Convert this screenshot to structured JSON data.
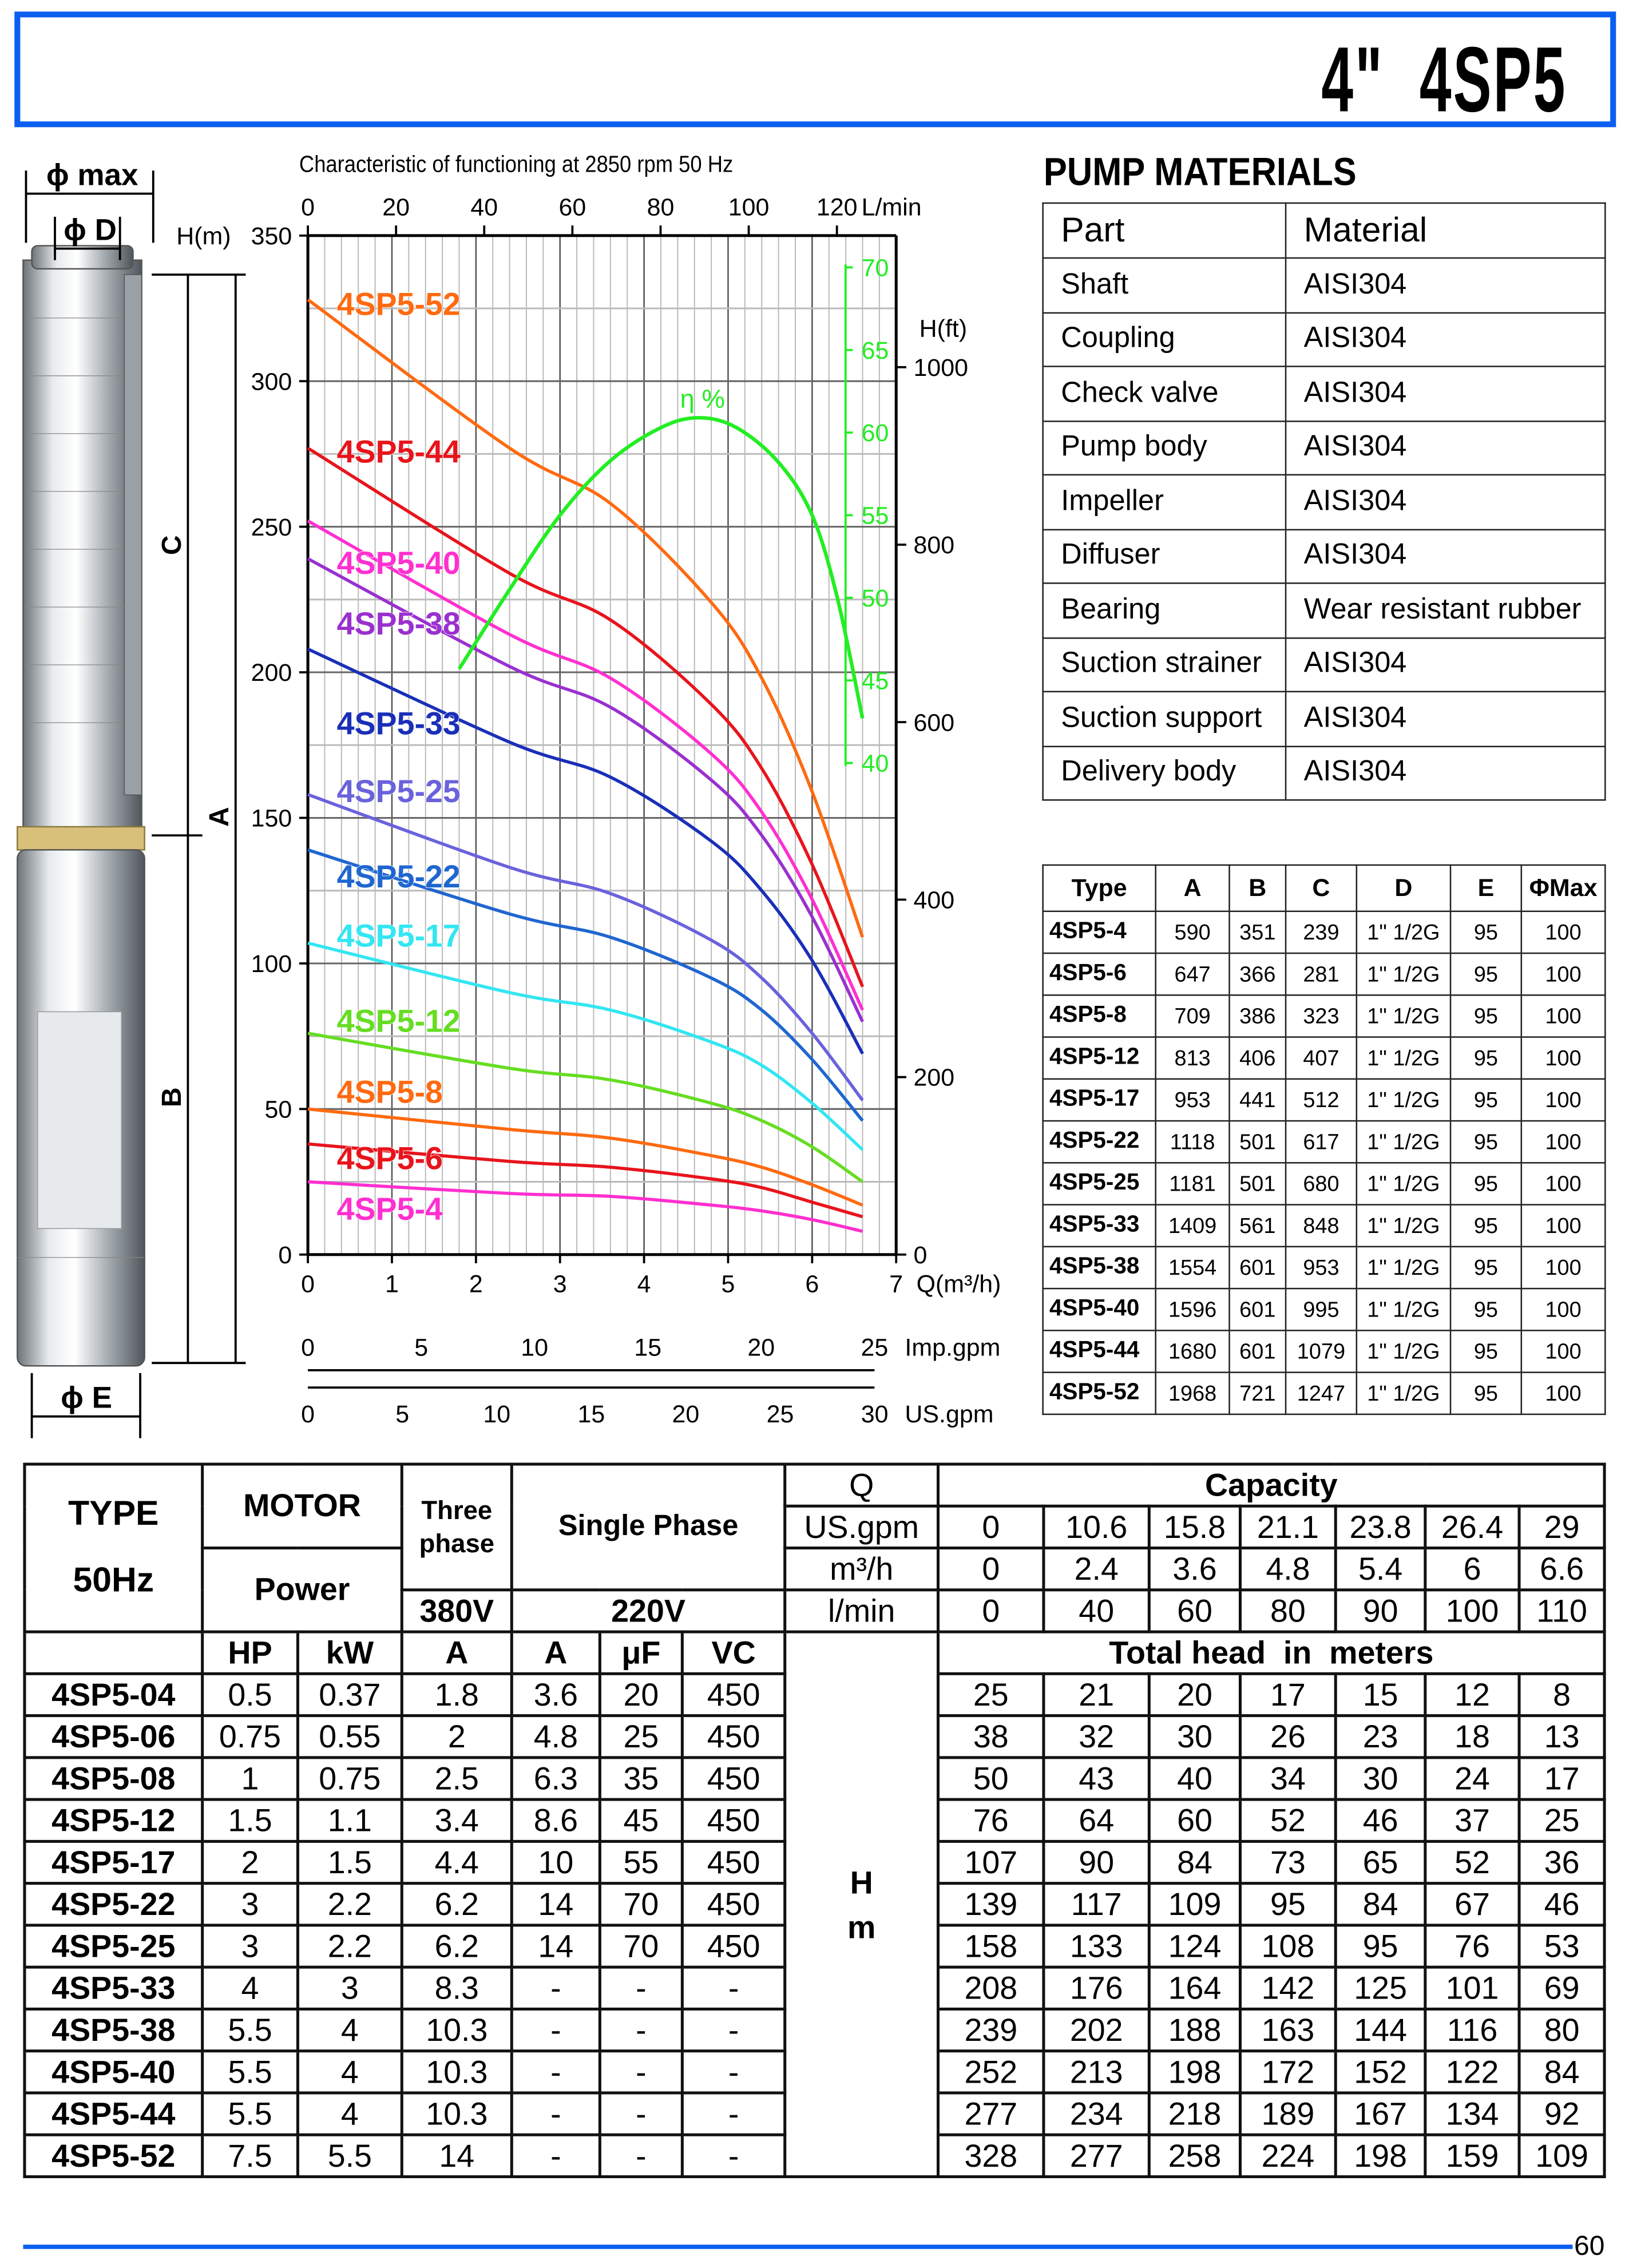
{
  "header": {
    "title": "4\"  4SP5",
    "border_color": "#0a5ff0"
  },
  "pump_figure": {
    "labels": {
      "phi_max": "ϕ max",
      "phi_d": "ϕ D",
      "c": "C",
      "a": "A",
      "b": "B",
      "phi_e": "ϕ E"
    }
  },
  "chart_data": {
    "type": "line",
    "title": "Characteristic of  functioning at 2850 rpm 50 Hz",
    "x": {
      "label": "Q(m³/h)",
      "range": [
        0,
        7
      ],
      "ticks": [
        0,
        1,
        2,
        3,
        4,
        5,
        6,
        7
      ]
    },
    "y": {
      "label": "H(m)",
      "range": [
        0,
        350
      ],
      "ticks": [
        0,
        50,
        100,
        150,
        200,
        250,
        300,
        350
      ]
    },
    "y_right": {
      "label": "H(ft)",
      "ticks": [
        0,
        200,
        400,
        600,
        800,
        1000
      ]
    },
    "x_top": {
      "label": "L/min",
      "ticks": [
        0,
        20,
        40,
        60,
        80,
        100,
        120
      ]
    },
    "x_imp": {
      "label": "Imp.gpm",
      "ticks": [
        0,
        5,
        10,
        15,
        20,
        25
      ]
    },
    "x_us": {
      "label": "US.gpm",
      "ticks": [
        0,
        5,
        10,
        15,
        20,
        25,
        30
      ]
    },
    "efficiency_axis": {
      "label": "η %",
      "ticks": [
        40,
        45,
        50,
        55,
        60,
        65,
        70
      ],
      "color": "#22ee22"
    },
    "grid": true,
    "q_points": [
      0,
      2.4,
      3.6,
      4.8,
      5.4,
      6,
      6.6
    ],
    "series": [
      {
        "name": "4SP5-52",
        "color": "#ff6a10",
        "values": [
          328,
          277,
          258,
          224,
          198,
          159,
          109
        ]
      },
      {
        "name": "4SP5-44",
        "color": "#e8141c",
        "values": [
          277,
          234,
          218,
          189,
          167,
          134,
          92
        ]
      },
      {
        "name": "4SP5-40",
        "color": "#ff2fd0",
        "values": [
          252,
          213,
          198,
          172,
          152,
          122,
          84
        ]
      },
      {
        "name": "4SP5-38",
        "color": "#9a30d0",
        "values": [
          239,
          202,
          188,
          163,
          144,
          116,
          80
        ]
      },
      {
        "name": "4SP5-33",
        "color": "#1a2fb8",
        "values": [
          208,
          176,
          164,
          142,
          125,
          101,
          69
        ]
      },
      {
        "name": "4SP5-25",
        "color": "#6a62dc",
        "values": [
          158,
          133,
          124,
          108,
          95,
          76,
          53
        ]
      },
      {
        "name": "4SP5-22",
        "color": "#1f66d0",
        "values": [
          139,
          117,
          109,
          95,
          84,
          67,
          46
        ]
      },
      {
        "name": "4SP5-17",
        "color": "#33e6f2",
        "values": [
          107,
          90,
          84,
          73,
          65,
          52,
          36
        ]
      },
      {
        "name": "4SP5-12",
        "color": "#66dd22",
        "values": [
          76,
          64,
          60,
          52,
          46,
          37,
          25
        ]
      },
      {
        "name": "4SP5-8",
        "color": "#ff6a10",
        "values": [
          50,
          43,
          40,
          34,
          30,
          24,
          17
        ]
      },
      {
        "name": "4SP5-6",
        "color": "#e8141c",
        "values": [
          38,
          32,
          30,
          26,
          23,
          18,
          13
        ]
      },
      {
        "name": "4SP5-4",
        "color": "#ff2fd0",
        "values": [
          25,
          21,
          20,
          17,
          15,
          12,
          8
        ]
      }
    ],
    "efficiency": {
      "q": [
        1.8,
        2.4,
        3.0,
        3.6,
        4.2,
        4.65,
        5.1,
        5.6,
        6.0,
        6.3,
        6.6
      ],
      "eta": [
        45.7,
        50.5,
        55,
        58.3,
        60.3,
        60.9,
        60.3,
        58.2,
        55,
        50,
        42.7
      ]
    }
  },
  "materials": {
    "title": "PUMP MATERIALS",
    "headers": [
      "Part",
      "Material"
    ],
    "rows": [
      [
        "Shaft",
        "AISI304"
      ],
      [
        "Coupling",
        "AISI304"
      ],
      [
        "Check valve",
        "AISI304"
      ],
      [
        "Pump body",
        "AISI304"
      ],
      [
        "Impeller",
        "AISI304"
      ],
      [
        "Diffuser",
        "AISI304"
      ],
      [
        "Bearing",
        "Wear resistant rubber"
      ],
      [
        "Suction strainer",
        "AISI304"
      ],
      [
        "Suction support",
        "AISI304"
      ],
      [
        "Delivery body",
        "AISI304"
      ]
    ]
  },
  "dimensions": {
    "headers": [
      "Type",
      "A",
      "B",
      "C",
      "D",
      "E",
      "ΦMax"
    ],
    "rows": [
      [
        "4SP5-4",
        "590",
        "351",
        "239",
        "1\" 1/2G",
        "95",
        "100"
      ],
      [
        "4SP5-6",
        "647",
        "366",
        "281",
        "1\" 1/2G",
        "95",
        "100"
      ],
      [
        "4SP5-8",
        "709",
        "386",
        "323",
        "1\" 1/2G",
        "95",
        "100"
      ],
      [
        "4SP5-12",
        "813",
        "406",
        "407",
        "1\" 1/2G",
        "95",
        "100"
      ],
      [
        "4SP5-17",
        "953",
        "441",
        "512",
        "1\" 1/2G",
        "95",
        "100"
      ],
      [
        "4SP5-22",
        "1118",
        "501",
        "617",
        "1\" 1/2G",
        "95",
        "100"
      ],
      [
        "4SP5-25",
        "1181",
        "501",
        "680",
        "1\" 1/2G",
        "95",
        "100"
      ],
      [
        "4SP5-33",
        "1409",
        "561",
        "848",
        "1\" 1/2G",
        "95",
        "100"
      ],
      [
        "4SP5-38",
        "1554",
        "601",
        "953",
        "1\" 1/2G",
        "95",
        "100"
      ],
      [
        "4SP5-40",
        "1596",
        "601",
        "995",
        "1\" 1/2G",
        "95",
        "100"
      ],
      [
        "4SP5-44",
        "1680",
        "601",
        "1079",
        "1\" 1/2G",
        "95",
        "100"
      ],
      [
        "4SP5-52",
        "1968",
        "721",
        "1247",
        "1\" 1/2G",
        "95",
        "100"
      ]
    ]
  },
  "performance": {
    "type_label": "TYPE",
    "hz_label": "50Hz",
    "motor_label": "MOTOR",
    "power_label": "Power",
    "three_phase_label": "Three phase",
    "single_phase_label": "Single Phase",
    "v380": "380V",
    "v220": "220V",
    "q_label": "Q",
    "capacity_label": "Capacity",
    "units": [
      "US.gpm",
      "m³/h",
      "l/min"
    ],
    "flow": {
      "US.gpm": [
        "0",
        "10.6",
        "15.8",
        "21.1",
        "23.8",
        "26.4",
        "29"
      ],
      "m3h": [
        "0",
        "2.4",
        "3.6",
        "4.8",
        "5.4",
        "6",
        "6.6"
      ],
      "lmin": [
        "0",
        "40",
        "60",
        "80",
        "90",
        "100",
        "110"
      ]
    },
    "sub_headers": [
      "HP",
      "kW",
      "A",
      "A",
      "μF",
      "VC"
    ],
    "total_head_label": "Total head  in  meters",
    "h_label": "H",
    "m_label": "m",
    "rows": [
      {
        "type": "4SP5-04",
        "hp": "0.5",
        "kw": "0.37",
        "a380": "1.8",
        "a220": "3.6",
        "uf": "20",
        "vc": "450",
        "heads": [
          "25",
          "21",
          "20",
          "17",
          "15",
          "12",
          "8"
        ]
      },
      {
        "type": "4SP5-06",
        "hp": "0.75",
        "kw": "0.55",
        "a380": "2",
        "a220": "4.8",
        "uf": "25",
        "vc": "450",
        "heads": [
          "38",
          "32",
          "30",
          "26",
          "23",
          "18",
          "13"
        ]
      },
      {
        "type": "4SP5-08",
        "hp": "1",
        "kw": "0.75",
        "a380": "2.5",
        "a220": "6.3",
        "uf": "35",
        "vc": "450",
        "heads": [
          "50",
          "43",
          "40",
          "34",
          "30",
          "24",
          "17"
        ]
      },
      {
        "type": "4SP5-12",
        "hp": "1.5",
        "kw": "1.1",
        "a380": "3.4",
        "a220": "8.6",
        "uf": "45",
        "vc": "450",
        "heads": [
          "76",
          "64",
          "60",
          "52",
          "46",
          "37",
          "25"
        ]
      },
      {
        "type": "4SP5-17",
        "hp": "2",
        "kw": "1.5",
        "a380": "4.4",
        "a220": "10",
        "uf": "55",
        "vc": "450",
        "heads": [
          "107",
          "90",
          "84",
          "73",
          "65",
          "52",
          "36"
        ]
      },
      {
        "type": "4SP5-22",
        "hp": "3",
        "kw": "2.2",
        "a380": "6.2",
        "a220": "14",
        "uf": "70",
        "vc": "450",
        "heads": [
          "139",
          "117",
          "109",
          "95",
          "84",
          "67",
          "46"
        ]
      },
      {
        "type": "4SP5-25",
        "hp": "3",
        "kw": "2.2",
        "a380": "6.2",
        "a220": "14",
        "uf": "70",
        "vc": "450",
        "heads": [
          "158",
          "133",
          "124",
          "108",
          "95",
          "76",
          "53"
        ]
      },
      {
        "type": "4SP5-33",
        "hp": "4",
        "kw": "3",
        "a380": "8.3",
        "a220": "-",
        "uf": "-",
        "vc": "-",
        "heads": [
          "208",
          "176",
          "164",
          "142",
          "125",
          "101",
          "69"
        ]
      },
      {
        "type": "4SP5-38",
        "hp": "5.5",
        "kw": "4",
        "a380": "10.3",
        "a220": "-",
        "uf": "-",
        "vc": "-",
        "heads": [
          "239",
          "202",
          "188",
          "163",
          "144",
          "116",
          "80"
        ]
      },
      {
        "type": "4SP5-40",
        "hp": "5.5",
        "kw": "4",
        "a380": "10.3",
        "a220": "-",
        "uf": "-",
        "vc": "-",
        "heads": [
          "252",
          "213",
          "198",
          "172",
          "152",
          "122",
          "84"
        ]
      },
      {
        "type": "4SP5-44",
        "hp": "5.5",
        "kw": "4",
        "a380": "10.3",
        "a220": "-",
        "uf": "-",
        "vc": "-",
        "heads": [
          "277",
          "234",
          "218",
          "189",
          "167",
          "134",
          "92"
        ]
      },
      {
        "type": "4SP5-52",
        "hp": "7.5",
        "kw": "5.5",
        "a380": "14",
        "a220": "-",
        "uf": "-",
        "vc": "-",
        "heads": [
          "328",
          "277",
          "258",
          "224",
          "198",
          "159",
          "109"
        ]
      }
    ]
  },
  "footer": {
    "page_number": "60",
    "line_color": "#0a5ff0"
  }
}
